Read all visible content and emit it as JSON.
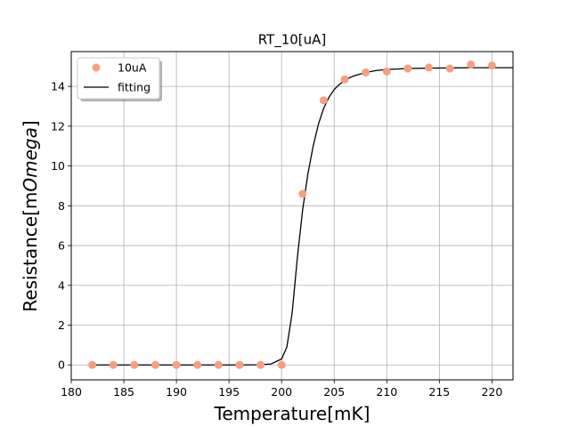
{
  "chart_data": {
    "type": "scatter",
    "title": "RT_10[uA]",
    "xlabel": "Temperature[mK]",
    "ylabel_prefix": "Resistance[m",
    "ylabel_italic": "Omega",
    "ylabel_suffix": "]",
    "xlim": [
      180,
      222
    ],
    "ylim": [
      -0.75,
      15.75
    ],
    "xticks": [
      180,
      185,
      190,
      195,
      200,
      205,
      210,
      215,
      220
    ],
    "yticks": [
      0,
      2,
      4,
      6,
      8,
      10,
      12,
      14
    ],
    "grid": true,
    "legend_position": "top-left",
    "series": [
      {
        "name": "10uA",
        "kind": "scatter",
        "color": "#f4a07f",
        "x": [
          182,
          184,
          186,
          188,
          190,
          192,
          194,
          196,
          198,
          200,
          202,
          204,
          206,
          208,
          210,
          212,
          214,
          216,
          218,
          220
        ],
        "y": [
          0,
          0,
          0,
          0,
          0,
          0,
          0,
          0,
          0,
          0,
          8.6,
          13.3,
          14.35,
          14.7,
          14.75,
          14.9,
          14.95,
          14.9,
          15.1,
          15.05
        ]
      },
      {
        "name": "fitting",
        "kind": "line",
        "color": "#000000",
        "x": [
          182,
          184,
          186,
          188,
          190,
          192,
          194,
          196,
          198,
          199,
          200,
          200.5,
          201,
          201.5,
          202,
          202.5,
          203,
          203.5,
          204,
          204.5,
          205,
          205.5,
          206,
          206.5,
          207,
          208,
          209,
          210,
          212,
          214,
          216,
          218,
          220,
          222
        ],
        "y": [
          0,
          0,
          0,
          0,
          0,
          0,
          0,
          0,
          0.01,
          0.05,
          0.3,
          0.9,
          2.6,
          5.4,
          7.8,
          9.6,
          11.0,
          12.1,
          12.9,
          13.45,
          13.85,
          14.1,
          14.3,
          14.45,
          14.55,
          14.7,
          14.8,
          14.85,
          14.9,
          14.92,
          14.93,
          14.94,
          14.94,
          14.94
        ]
      }
    ]
  }
}
